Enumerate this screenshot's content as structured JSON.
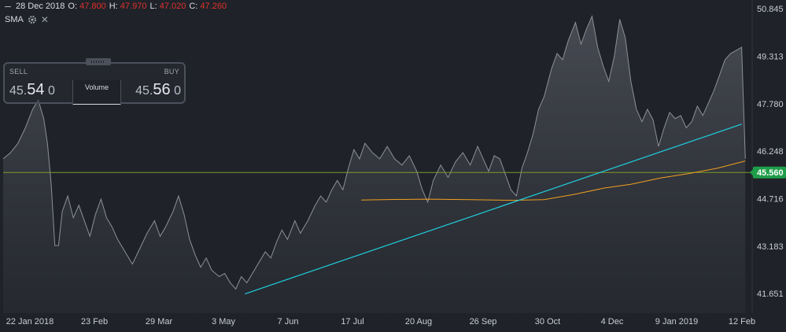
{
  "ohlc": {
    "date": "28 Dec 2018",
    "o_label": "O:",
    "o": "47.800",
    "h_label": "H:",
    "h": "47.970",
    "l_label": "L:",
    "l": "47.020",
    "c_label": "C:",
    "c": "47.260"
  },
  "indicator": {
    "label": "SMA"
  },
  "trade": {
    "sell_label": "SELL",
    "sell_prefix": "45.",
    "sell_big": "54",
    "sell_suffix": "0",
    "buy_label": "BUY",
    "buy_prefix": "45.",
    "buy_big": "56",
    "buy_suffix": "0",
    "volume_label": "Volume"
  },
  "colors": {
    "background": "#1f2229",
    "area_line": "#8d9099",
    "trend_line": "#1fd0e0",
    "sma_line": "#f0a020",
    "current_price_line": "#7a9a2a",
    "current_price_badge": "#1f9e4a",
    "axis_text": "#c8ccd4"
  },
  "chart_data": {
    "type": "area",
    "y_ticks": [
      "50.845",
      "49.313",
      "47.780",
      "46.248",
      "44.716",
      "43.183",
      "41.651"
    ],
    "ylim": [
      41.4,
      51.0
    ],
    "x_ticks": [
      "22 Jan 2018",
      "23 Feb",
      "29 Mar",
      "3 May",
      "7 Jun",
      "17 Jul",
      "20 Aug",
      "26 Sep",
      "30 Oct",
      "4 Dec",
      "9 Jan 2019",
      "12 Feb"
    ],
    "current_price": {
      "label": "45.560",
      "value": 45.56
    },
    "x_range": [
      "2018-01-10",
      "2019-02-18"
    ],
    "price_series": [
      [
        "2018-01-10",
        46.0
      ],
      [
        "2018-01-14",
        46.2
      ],
      [
        "2018-01-18",
        46.5
      ],
      [
        "2018-01-22",
        47.0
      ],
      [
        "2018-01-26",
        47.6
      ],
      [
        "2018-01-29",
        47.9
      ],
      [
        "2018-02-01",
        47.3
      ],
      [
        "2018-02-03",
        46.5
      ],
      [
        "2018-02-05",
        45.2
      ],
      [
        "2018-02-07",
        43.2
      ],
      [
        "2018-02-09",
        43.2
      ],
      [
        "2018-02-11",
        44.3
      ],
      [
        "2018-02-14",
        44.8
      ],
      [
        "2018-02-17",
        44.1
      ],
      [
        "2018-02-20",
        44.5
      ],
      [
        "2018-02-23",
        44.0
      ],
      [
        "2018-02-26",
        43.5
      ],
      [
        "2018-03-01",
        44.2
      ],
      [
        "2018-03-04",
        44.7
      ],
      [
        "2018-03-07",
        44.1
      ],
      [
        "2018-03-10",
        43.8
      ],
      [
        "2018-03-13",
        43.4
      ],
      [
        "2018-03-17",
        43.0
      ],
      [
        "2018-03-21",
        42.6
      ],
      [
        "2018-03-25",
        43.1
      ],
      [
        "2018-03-29",
        43.6
      ],
      [
        "2018-04-02",
        44.0
      ],
      [
        "2018-04-05",
        43.5
      ],
      [
        "2018-04-08",
        43.8
      ],
      [
        "2018-04-12",
        44.3
      ],
      [
        "2018-04-15",
        44.8
      ],
      [
        "2018-04-18",
        44.2
      ],
      [
        "2018-04-21",
        43.4
      ],
      [
        "2018-04-24",
        42.9
      ],
      [
        "2018-04-27",
        42.5
      ],
      [
        "2018-04-30",
        42.8
      ],
      [
        "2018-05-03",
        42.4
      ],
      [
        "2018-05-07",
        42.2
      ],
      [
        "2018-05-10",
        42.3
      ],
      [
        "2018-05-13",
        42.0
      ],
      [
        "2018-05-16",
        41.8
      ],
      [
        "2018-05-19",
        42.2
      ],
      [
        "2018-05-22",
        42.0
      ],
      [
        "2018-05-25",
        42.3
      ],
      [
        "2018-05-28",
        42.6
      ],
      [
        "2018-06-01",
        43.0
      ],
      [
        "2018-06-04",
        42.8
      ],
      [
        "2018-06-07",
        43.3
      ],
      [
        "2018-06-10",
        43.7
      ],
      [
        "2018-06-13",
        43.4
      ],
      [
        "2018-06-17",
        44.0
      ],
      [
        "2018-06-20",
        43.6
      ],
      [
        "2018-06-24",
        44.0
      ],
      [
        "2018-06-28",
        44.5
      ],
      [
        "2018-07-01",
        44.8
      ],
      [
        "2018-07-04",
        44.6
      ],
      [
        "2018-07-07",
        45.0
      ],
      [
        "2018-07-10",
        45.3
      ],
      [
        "2018-07-13",
        45.0
      ],
      [
        "2018-07-16",
        45.7
      ],
      [
        "2018-07-19",
        46.3
      ],
      [
        "2018-07-22",
        46.0
      ],
      [
        "2018-07-25",
        46.5
      ],
      [
        "2018-07-29",
        46.2
      ],
      [
        "2018-08-02",
        46.0
      ],
      [
        "2018-08-06",
        46.4
      ],
      [
        "2018-08-10",
        46.0
      ],
      [
        "2018-08-14",
        45.8
      ],
      [
        "2018-08-18",
        46.1
      ],
      [
        "2018-08-22",
        45.6
      ],
      [
        "2018-08-25",
        45.0
      ],
      [
        "2018-08-28",
        44.6
      ],
      [
        "2018-08-31",
        45.3
      ],
      [
        "2018-09-04",
        45.8
      ],
      [
        "2018-09-08",
        45.4
      ],
      [
        "2018-09-12",
        45.9
      ],
      [
        "2018-09-16",
        46.2
      ],
      [
        "2018-09-20",
        45.8
      ],
      [
        "2018-09-24",
        46.4
      ],
      [
        "2018-09-27",
        46.0
      ],
      [
        "2018-09-30",
        45.6
      ],
      [
        "2018-10-03",
        46.1
      ],
      [
        "2018-10-06",
        46.0
      ],
      [
        "2018-10-09",
        45.5
      ],
      [
        "2018-10-12",
        45.0
      ],
      [
        "2018-10-15",
        44.8
      ],
      [
        "2018-10-18",
        45.7
      ],
      [
        "2018-10-21",
        46.2
      ],
      [
        "2018-10-24",
        46.8
      ],
      [
        "2018-10-27",
        47.6
      ],
      [
        "2018-10-30",
        48.0
      ],
      [
        "2018-11-03",
        48.9
      ],
      [
        "2018-11-06",
        49.4
      ],
      [
        "2018-11-09",
        49.2
      ],
      [
        "2018-11-12",
        49.8
      ],
      [
        "2018-11-16",
        50.4
      ],
      [
        "2018-11-19",
        49.7
      ],
      [
        "2018-11-22",
        50.2
      ],
      [
        "2018-11-25",
        50.6
      ],
      [
        "2018-11-28",
        49.6
      ],
      [
        "2018-12-01",
        49.0
      ],
      [
        "2018-12-04",
        48.5
      ],
      [
        "2018-12-07",
        49.3
      ],
      [
        "2018-12-10",
        50.5
      ],
      [
        "2018-12-13",
        49.9
      ],
      [
        "2018-12-16",
        48.5
      ],
      [
        "2018-12-19",
        47.6
      ],
      [
        "2018-12-22",
        47.2
      ],
      [
        "2018-12-25",
        47.6
      ],
      [
        "2018-12-28",
        47.26
      ],
      [
        "2018-12-31",
        46.4
      ],
      [
        "2019-01-03",
        47.0
      ],
      [
        "2019-01-06",
        47.5
      ],
      [
        "2019-01-09",
        47.3
      ],
      [
        "2019-01-12",
        47.4
      ],
      [
        "2019-01-15",
        47.0
      ],
      [
        "2019-01-18",
        47.2
      ],
      [
        "2019-01-21",
        47.7
      ],
      [
        "2019-01-24",
        47.4
      ],
      [
        "2019-01-27",
        47.8
      ],
      [
        "2019-01-30",
        48.2
      ],
      [
        "2019-02-02",
        48.7
      ],
      [
        "2019-02-05",
        49.2
      ],
      [
        "2019-02-08",
        49.4
      ],
      [
        "2019-02-11",
        49.5
      ],
      [
        "2019-02-14",
        49.6
      ],
      [
        "2019-02-16",
        46.0
      ]
    ],
    "sma_series": [
      [
        "2018-07-23",
        44.67
      ],
      [
        "2018-08-10",
        44.69
      ],
      [
        "2018-08-28",
        44.7
      ],
      [
        "2018-09-20",
        44.68
      ],
      [
        "2018-10-12",
        44.66
      ],
      [
        "2018-10-30",
        44.68
      ],
      [
        "2018-11-15",
        44.85
      ],
      [
        "2018-12-01",
        45.05
      ],
      [
        "2018-12-16",
        45.18
      ],
      [
        "2019-01-01",
        45.38
      ],
      [
        "2019-01-16",
        45.52
      ],
      [
        "2019-02-01",
        45.7
      ],
      [
        "2019-02-16",
        45.93
      ]
    ],
    "trend_line": [
      [
        "2018-05-21",
        41.64
      ],
      [
        "2019-02-14",
        47.12
      ]
    ]
  }
}
